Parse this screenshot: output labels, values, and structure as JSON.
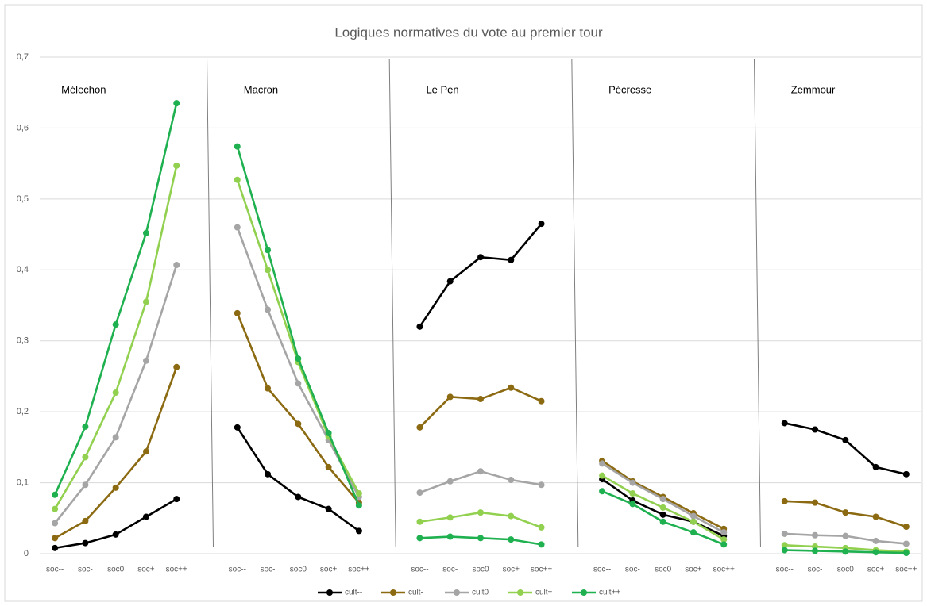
{
  "chart_data": {
    "type": "line",
    "title": "Logiques normatives du vote au premier tour",
    "panel_labels": [
      "Mélechon",
      "Macron",
      "Le Pen",
      "Pécresse",
      "Zemmour"
    ],
    "categories": [
      "soc--",
      "soc-",
      "soc0",
      "soc+",
      "soc++",
      null,
      "soc--",
      "soc-",
      "soc0",
      "soc+",
      "soc++",
      null,
      "soc--",
      "soc-",
      "soc0",
      "soc+",
      "soc++",
      null,
      "soc--",
      "soc-",
      "soc0",
      "soc+",
      "soc++",
      null,
      "soc--",
      "soc-",
      "soc0",
      "soc+",
      "soc++"
    ],
    "ylim": [
      0,
      0.7
    ],
    "yticks": [
      0,
      {
        "value": 0.1,
        "label": "0,1"
      },
      {
        "value": 0.2,
        "label": "0,2"
      },
      {
        "value": 0.3,
        "label": "0,3"
      },
      {
        "value": 0.4,
        "label": "0,4"
      },
      {
        "value": 0.5,
        "label": "0,5"
      },
      {
        "value": 0.6,
        "label": "0,6"
      },
      {
        "value": 0.7,
        "label": "0,7"
      }
    ],
    "grid": true,
    "legend": "bottom",
    "series": [
      {
        "name": "cult--",
        "color": "#000000",
        "values": [
          0.008,
          0.015,
          0.027,
          0.052,
          0.077,
          null,
          0.178,
          0.112,
          0.08,
          0.063,
          0.032,
          null,
          0.32,
          0.384,
          0.418,
          0.414,
          0.465,
          null,
          0.105,
          0.075,
          0.055,
          0.045,
          0.025,
          null,
          0.184,
          0.175,
          0.16,
          0.122,
          0.112
        ]
      },
      {
        "name": "cult-",
        "color": "#8b6a12",
        "values": [
          0.022,
          0.046,
          0.093,
          0.144,
          0.263,
          null,
          0.339,
          0.233,
          0.183,
          0.122,
          0.072,
          null,
          0.178,
          0.221,
          0.218,
          0.234,
          0.215,
          null,
          0.131,
          0.102,
          0.08,
          0.057,
          0.035,
          null,
          0.074,
          0.072,
          0.058,
          0.052,
          0.038
        ]
      },
      {
        "name": "cult0",
        "color": "#a5a5a5",
        "values": [
          0.043,
          0.097,
          0.164,
          0.272,
          0.407,
          null,
          0.46,
          0.344,
          0.24,
          0.16,
          0.08,
          null,
          0.086,
          0.102,
          0.116,
          0.104,
          0.097,
          null,
          0.127,
          0.1,
          0.077,
          0.053,
          0.03,
          null,
          0.028,
          0.026,
          0.025,
          0.018,
          0.014
        ]
      },
      {
        "name": "cult+",
        "color": "#92d050",
        "values": [
          0.063,
          0.136,
          0.227,
          0.355,
          0.547,
          null,
          0.527,
          0.4,
          0.27,
          0.165,
          0.085,
          null,
          0.045,
          0.051,
          0.058,
          0.053,
          0.037,
          null,
          0.11,
          0.085,
          0.065,
          0.045,
          0.02,
          null,
          0.012,
          0.01,
          0.008,
          0.005,
          0.003
        ]
      },
      {
        "name": "cult++",
        "color": "#1fb050",
        "values": [
          0.083,
          0.179,
          0.323,
          0.452,
          0.635,
          null,
          0.574,
          0.428,
          0.275,
          0.17,
          0.068,
          null,
          0.022,
          0.024,
          0.022,
          0.02,
          0.013,
          null,
          0.088,
          0.07,
          0.045,
          0.03,
          0.013,
          null,
          0.005,
          0.004,
          0.003,
          0.002,
          0.001
        ]
      }
    ]
  }
}
